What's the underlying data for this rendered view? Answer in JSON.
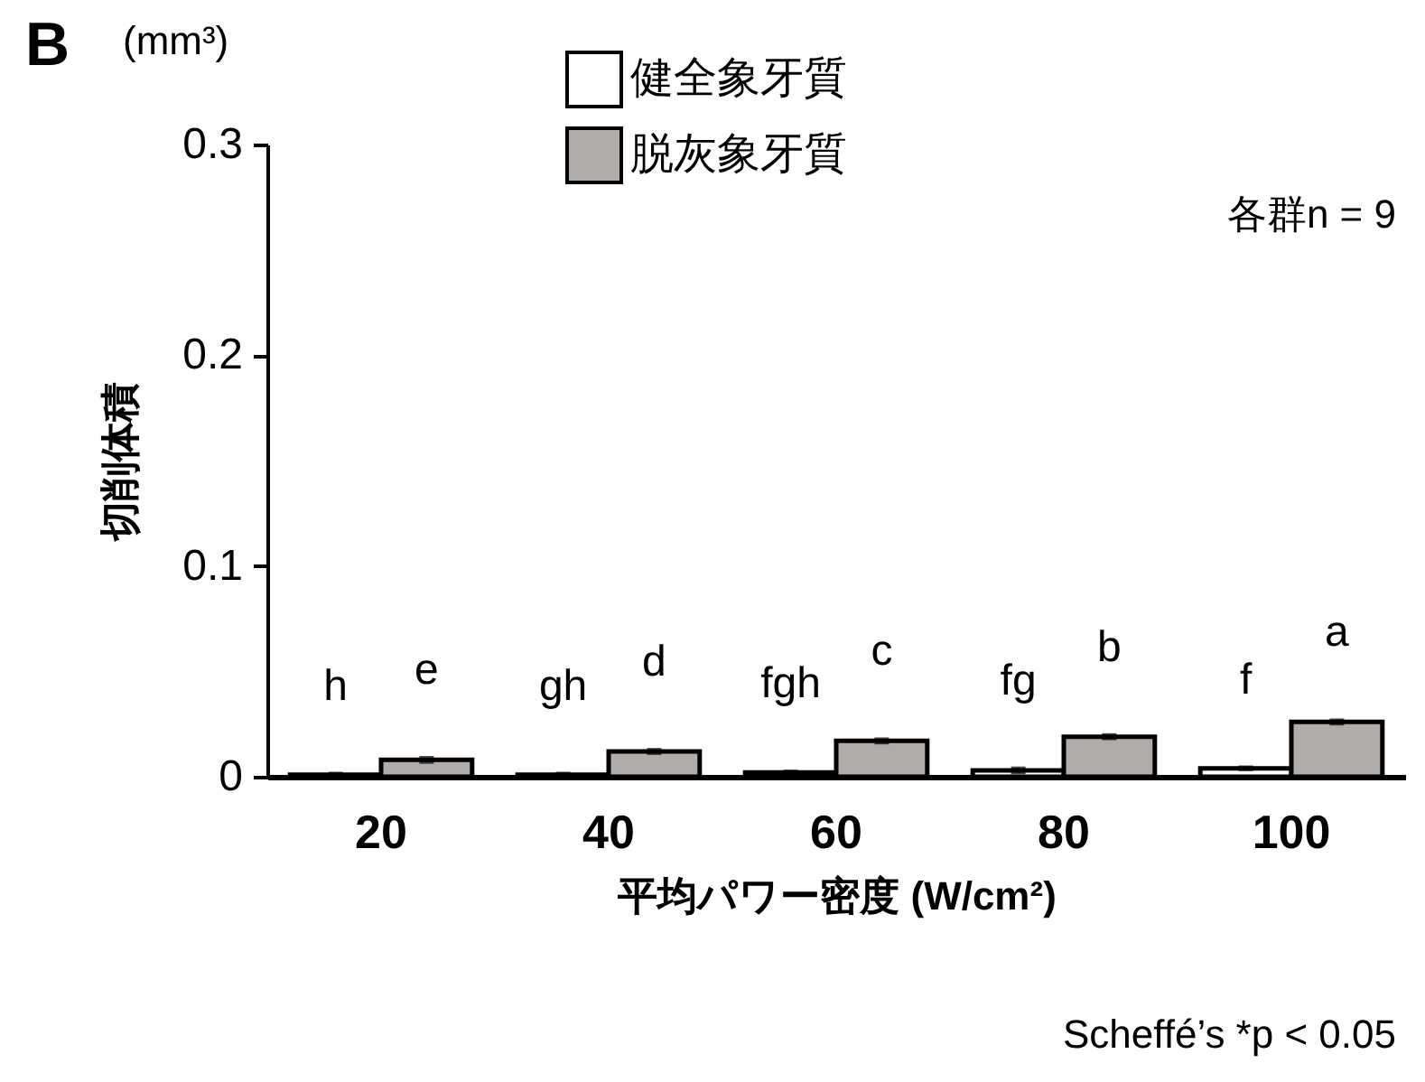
{
  "chart_data": {
    "type": "bar",
    "xlabel": "平均パワー密度 (W/cm²)",
    "ylabel": "切削体積",
    "categories": [
      "20",
      "40",
      "60",
      "80",
      "100"
    ],
    "series": [
      {
        "name": "健全象牙質",
        "color": "#ffffff",
        "values": [
          0.001,
          0.001,
          0.002,
          0.003,
          0.004
        ],
        "errors": [
          0.0005,
          0.0005,
          0.0005,
          0.001,
          0.0005
        ],
        "value_labels": [
          "h",
          "gh",
          "fgh",
          "fg",
          "f"
        ]
      },
      {
        "name": "脱灰象牙質",
        "color": "#b0acaa",
        "values": [
          0.008,
          0.012,
          0.017,
          0.019,
          0.026
        ],
        "errors": [
          0.001,
          0.0008,
          0.0008,
          0.0008,
          0.0008
        ],
        "value_labels": [
          "e",
          "d",
          "c",
          "b",
          "a"
        ]
      }
    ],
    "ylim": [
      0,
      0.3
    ],
    "yticks": [
      0,
      0.1,
      0.2,
      0.3
    ],
    "grid": false,
    "legend": "top",
    "annotations": [
      "B",
      "(mm³)",
      "各群n = 9",
      "Scheffé’s *p < 0.05"
    ]
  }
}
